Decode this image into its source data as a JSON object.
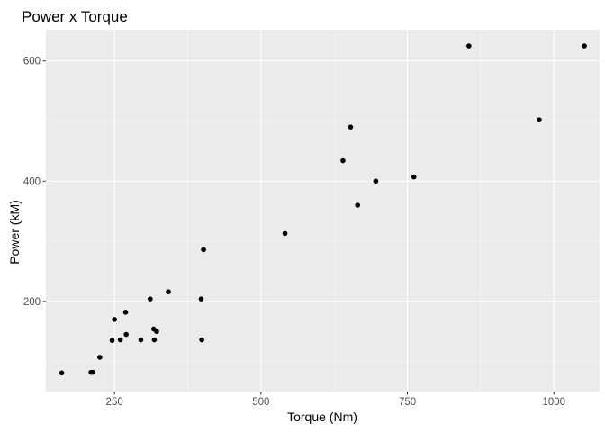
{
  "chart_data": {
    "type": "scatter",
    "title": "Power x Torque",
    "xlabel": "Torque (Nm)",
    "ylabel": "Power (kM)",
    "xlim": [
      133,
      1078
    ],
    "ylim": [
      50,
      652
    ],
    "x_ticks": [
      250,
      500,
      750,
      1000
    ],
    "y_ticks": [
      200,
      400,
      600
    ],
    "grid": true,
    "legend": "none",
    "colors": {
      "panel": "#EBEBEB",
      "grid_major": "#FFFFFF",
      "point": "#000000",
      "tick_label": "#4D4D4D"
    },
    "points": [
      {
        "x": 160,
        "y": 81
      },
      {
        "x": 210,
        "y": 82
      },
      {
        "x": 213,
        "y": 82
      },
      {
        "x": 225,
        "y": 107
      },
      {
        "x": 246,
        "y": 135
      },
      {
        "x": 250,
        "y": 170
      },
      {
        "x": 260,
        "y": 136
      },
      {
        "x": 269,
        "y": 182
      },
      {
        "x": 270,
        "y": 145
      },
      {
        "x": 295,
        "y": 136
      },
      {
        "x": 311,
        "y": 204
      },
      {
        "x": 317,
        "y": 154
      },
      {
        "x": 318,
        "y": 136
      },
      {
        "x": 322,
        "y": 150
      },
      {
        "x": 342,
        "y": 216
      },
      {
        "x": 398,
        "y": 204
      },
      {
        "x": 399,
        "y": 136
      },
      {
        "x": 402,
        "y": 286
      },
      {
        "x": 541,
        "y": 313
      },
      {
        "x": 640,
        "y": 434
      },
      {
        "x": 653,
        "y": 490
      },
      {
        "x": 665,
        "y": 360
      },
      {
        "x": 696,
        "y": 400
      },
      {
        "x": 761,
        "y": 407
      },
      {
        "x": 855,
        "y": 625
      },
      {
        "x": 975,
        "y": 502
      },
      {
        "x": 1052,
        "y": 625
      }
    ]
  }
}
